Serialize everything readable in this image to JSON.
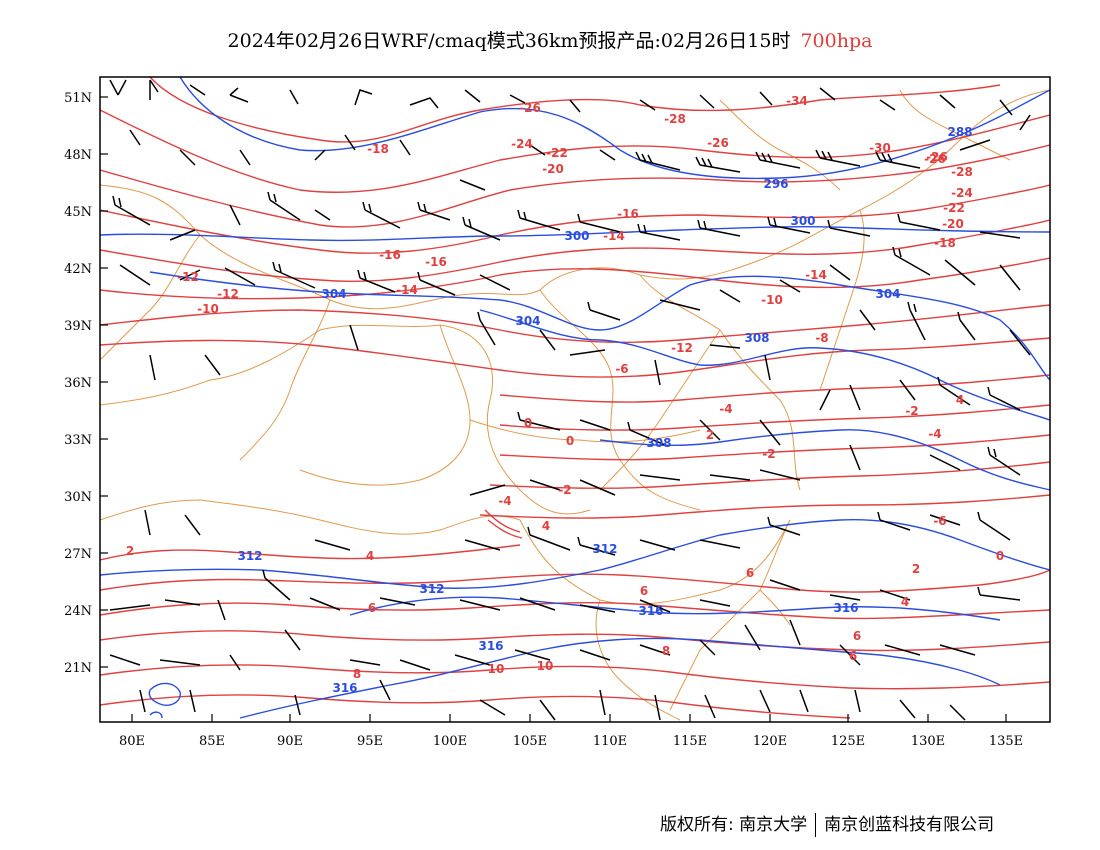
{
  "title": {
    "main": "2024年02月26日WRF/cmaq模式36km预报产品:02月26日15时",
    "level": "700hpa"
  },
  "axes": {
    "lat_labels": [
      "51N",
      "48N",
      "45N",
      "42N",
      "39N",
      "36N",
      "33N",
      "30N",
      "27N",
      "24N",
      "21N"
    ],
    "lon_labels": [
      "80E",
      "85E",
      "90E",
      "95E",
      "100E",
      "105E",
      "110E",
      "115E",
      "120E",
      "125E",
      "130E",
      "135E"
    ]
  },
  "colors": {
    "temperature": "#e04040",
    "height": "#2a4de0",
    "boundary": "#e09a50",
    "frame": "#000000"
  },
  "temperature_labels": [
    "-26",
    "-28",
    "-34",
    "-26",
    "-24",
    "-22",
    "-20",
    "-18",
    "-26",
    "-30",
    "-26",
    "-28",
    "-24",
    "-22",
    "-20",
    "-18",
    "-16",
    "-16",
    "-16",
    "-14",
    "-14",
    "-12",
    "-10",
    "-14",
    "-12",
    "-10",
    "-12",
    "-8",
    "-6",
    "-4",
    "-2",
    "0",
    "-4",
    "-2",
    "0",
    "4",
    "2",
    "4",
    "6",
    "8",
    "10",
    "10",
    "8",
    "6",
    "6",
    "6",
    "4",
    "2",
    "-4",
    "-6",
    "-2",
    "0",
    "2",
    "4",
    "6"
  ],
  "height_labels": [
    "288",
    "296",
    "300",
    "300",
    "304",
    "304",
    "304",
    "308",
    "308",
    "312",
    "312",
    "312",
    "316",
    "316",
    "316",
    "316"
  ],
  "footer": {
    "left": "版权所有: 南京大学",
    "right": "南京创蓝科技有限公司"
  }
}
